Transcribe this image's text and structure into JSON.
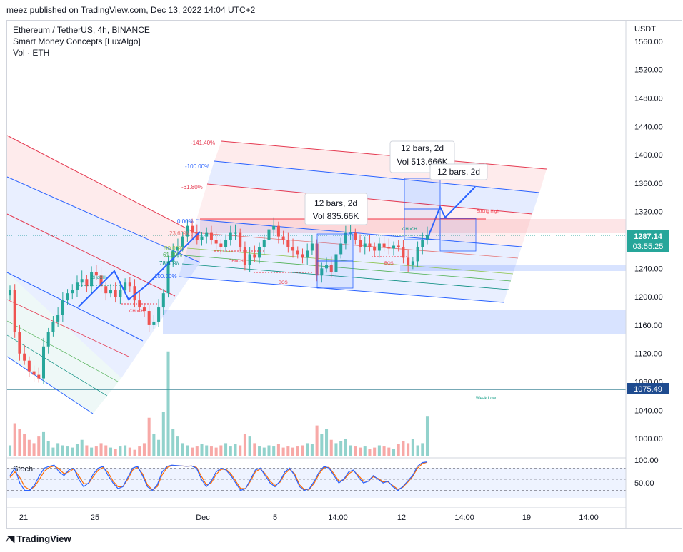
{
  "publisher": "meez published on TradingView.com, Dec 13, 2022 14:04 UTC+2",
  "legend": {
    "symbol": "Ethereum / TetherUS, 4h, BINANCE",
    "indicator": "Smart Money Concepts [LuxAlgo]",
    "volume": "Vol · ETH"
  },
  "currency": "USDT",
  "brand": "TradingView",
  "colors": {
    "up": "#26a69a",
    "down": "#ef5350",
    "blue": "#2962ff",
    "red": "#e53950",
    "stoch_k": "#2962ff",
    "stoch_d": "#ff6d00"
  },
  "chart_data": {
    "type": "candlestick",
    "title": "Ethereum / TetherUS, 4h, BINANCE",
    "ylim": [
      975,
      1570
    ],
    "y_ticks": [
      "1560.00",
      "1520.00",
      "1480.00",
      "1440.00",
      "1400.00",
      "1360.00",
      "1320.00",
      "1280.00",
      "1240.00",
      "1200.00",
      "1160.00",
      "1120.00",
      "1080.00",
      "1040.00",
      "1000.00"
    ],
    "x_ticks": [
      "21",
      "25",
      "Dec",
      "5",
      "14:00",
      "12",
      "14:00",
      "19",
      "14:00"
    ],
    "last_price": "1287.14",
    "countdown": "03:55:25",
    "weak_low_price": "1075.49",
    "closes": [
      1210,
      1150,
      1120,
      1110,
      1095,
      1090,
      1085,
      1130,
      1150,
      1165,
      1175,
      1195,
      1205,
      1210,
      1220,
      1225,
      1215,
      1235,
      1230,
      1215,
      1205,
      1210,
      1200,
      1210,
      1220,
      1215,
      1195,
      1185,
      1180,
      1160,
      1165,
      1185,
      1205,
      1250,
      1265,
      1270,
      1285,
      1300,
      1290,
      1280,
      1285,
      1290,
      1280,
      1275,
      1270,
      1280,
      1290,
      1290,
      1270,
      1245,
      1260,
      1255,
      1270,
      1280,
      1295,
      1300,
      1285,
      1280,
      1270,
      1265,
      1260,
      1255,
      1265,
      1275,
      1230,
      1240,
      1245,
      1235,
      1260,
      1275,
      1290,
      1290,
      1280,
      1270,
      1275,
      1270,
      1265,
      1275,
      1270,
      1268,
      1272,
      1270,
      1255,
      1245,
      1250,
      1270,
      1280,
      1287
    ],
    "volume": [
      10,
      30,
      25,
      20,
      15,
      12,
      18,
      22,
      14,
      8,
      12,
      10,
      9,
      8,
      11,
      15,
      10,
      8,
      9,
      12,
      10,
      8,
      7,
      9,
      10,
      8,
      6,
      9,
      12,
      35,
      20,
      15,
      40,
      95,
      25,
      18,
      12,
      10,
      8,
      9,
      11,
      10,
      9,
      8,
      10,
      12,
      9,
      11,
      10,
      20,
      18,
      12,
      9,
      8,
      10,
      9,
      11,
      8,
      9,
      8,
      9,
      10,
      12,
      11,
      28,
      20,
      25,
      15,
      12,
      14,
      16,
      10,
      9,
      8,
      9,
      7,
      8,
      10,
      9,
      8,
      7,
      11,
      14,
      12,
      16,
      10,
      12,
      36
    ],
    "stoch_k": [
      60,
      80,
      40,
      20,
      20,
      35,
      60,
      80,
      85,
      88,
      70,
      60,
      75,
      80,
      50,
      30,
      40,
      65,
      80,
      85,
      60,
      40,
      25,
      30,
      55,
      80,
      85,
      60,
      30,
      20,
      35,
      70,
      85,
      88,
      87,
      86,
      85,
      86,
      80,
      50,
      30,
      45,
      70,
      80,
      75,
      60,
      40,
      20,
      25,
      50,
      75,
      80,
      60,
      40,
      30,
      45,
      70,
      80,
      60,
      30,
      20,
      25,
      45,
      70,
      85,
      80,
      60,
      40,
      50,
      70,
      75,
      55,
      40,
      45,
      60,
      50,
      40,
      45,
      30,
      20,
      30,
      45,
      60,
      85,
      95,
      97
    ],
    "stoch_d": [
      55,
      70,
      55,
      30,
      22,
      30,
      50,
      72,
      82,
      86,
      78,
      65,
      70,
      78,
      60,
      38,
      38,
      58,
      75,
      82,
      68,
      45,
      30,
      30,
      50,
      75,
      82,
      65,
      35,
      22,
      30,
      62,
      82,
      87,
      87,
      86,
      85,
      86,
      82,
      58,
      35,
      40,
      63,
      77,
      77,
      65,
      45,
      25,
      25,
      45,
      70,
      78,
      65,
      45,
      33,
      42,
      65,
      77,
      65,
      35,
      22,
      23,
      40,
      65,
      82,
      82,
      65,
      45,
      48,
      65,
      73,
      60,
      45,
      45,
      57,
      52,
      43,
      43,
      33,
      23,
      28,
      42,
      57,
      80,
      92,
      96
    ],
    "annotations": [
      {
        "text": "12 bars, 2d",
        "vol": "Vol 835.66K"
      },
      {
        "text": "12 bars, 2d",
        "vol": "Vol 513.666K"
      },
      {
        "text": "12 bars, 2d"
      }
    ],
    "fib_levels": [
      "-141.40%",
      "-100.00%",
      "-61.80%",
      "0.00%",
      "23.60%",
      "50.00%",
      "61.80%",
      "78.60%",
      "100.00%"
    ],
    "labels": [
      "CHoCH",
      "CHoCH",
      "CHoCH",
      "CHoCH",
      "BOS",
      "BOS",
      "Strong High",
      "Weak Low"
    ],
    "stoch_label": "Stoch",
    "stoch_ticks": [
      "100.00",
      "50.00"
    ]
  }
}
